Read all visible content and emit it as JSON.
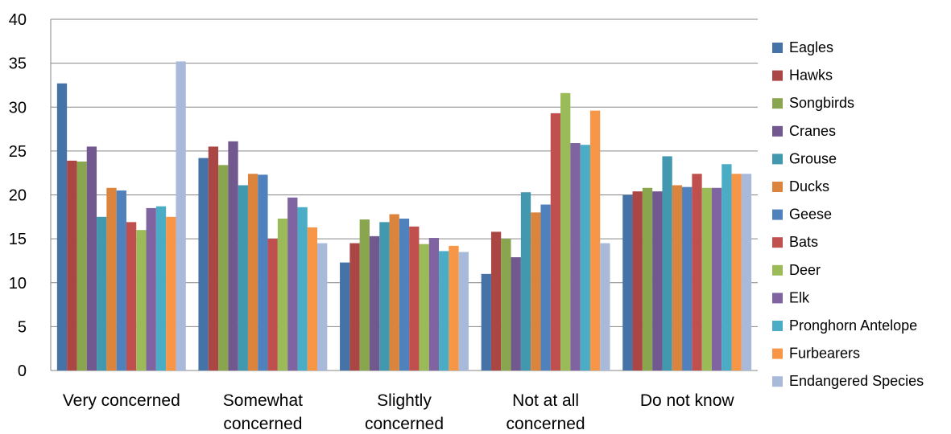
{
  "chart_data": {
    "type": "bar",
    "title": "",
    "xlabel": "",
    "ylabel": "",
    "ylim": [
      0,
      40
    ],
    "yticks": [
      0,
      5,
      10,
      15,
      20,
      25,
      30,
      35,
      40
    ],
    "grid": true,
    "legend_position": "right",
    "categories": [
      [
        "Very concerned"
      ],
      [
        "Somewhat",
        "concerned"
      ],
      [
        "Slightly",
        "concerned"
      ],
      [
        "Not at all",
        "concerned"
      ],
      [
        "Do not know"
      ]
    ],
    "series": [
      {
        "name": "Eagles",
        "color": "#4572A7",
        "values": [
          32.7,
          24.2,
          12.3,
          11.0,
          20.0
        ]
      },
      {
        "name": "Hawks",
        "color": "#AA4643",
        "values": [
          23.9,
          25.5,
          14.5,
          15.8,
          20.4
        ]
      },
      {
        "name": "Songbirds",
        "color": "#89A54E",
        "values": [
          23.8,
          23.4,
          17.2,
          15.0,
          20.8
        ]
      },
      {
        "name": "Cranes",
        "color": "#71588F",
        "values": [
          25.5,
          26.1,
          15.3,
          12.9,
          20.4
        ]
      },
      {
        "name": "Grouse",
        "color": "#4198AF",
        "values": [
          17.5,
          21.1,
          16.9,
          20.3,
          24.4
        ]
      },
      {
        "name": "Ducks",
        "color": "#DB843D",
        "values": [
          20.8,
          22.4,
          17.8,
          18.0,
          21.1
        ]
      },
      {
        "name": "Geese",
        "color": "#4F81BD",
        "values": [
          20.5,
          22.3,
          17.3,
          18.9,
          20.9
        ]
      },
      {
        "name": "Bats",
        "color": "#C0504D",
        "values": [
          16.9,
          15.0,
          16.4,
          29.3,
          22.4
        ]
      },
      {
        "name": "Deer",
        "color": "#9BBB59",
        "values": [
          16.0,
          17.3,
          14.4,
          31.6,
          20.8
        ]
      },
      {
        "name": "Elk",
        "color": "#8064A2",
        "values": [
          18.5,
          19.7,
          15.1,
          25.9,
          20.8
        ]
      },
      {
        "name": "Pronghorn Antelope",
        "color": "#4BACC6",
        "values": [
          18.7,
          18.6,
          13.6,
          25.7,
          23.5
        ]
      },
      {
        "name": "Furbearers",
        "color": "#F79646",
        "values": [
          17.5,
          16.3,
          14.2,
          29.6,
          22.4
        ]
      },
      {
        "name": "Endangered Species",
        "color": "#A9B9DA",
        "values": [
          35.2,
          14.5,
          13.5,
          14.5,
          22.4
        ]
      }
    ]
  }
}
